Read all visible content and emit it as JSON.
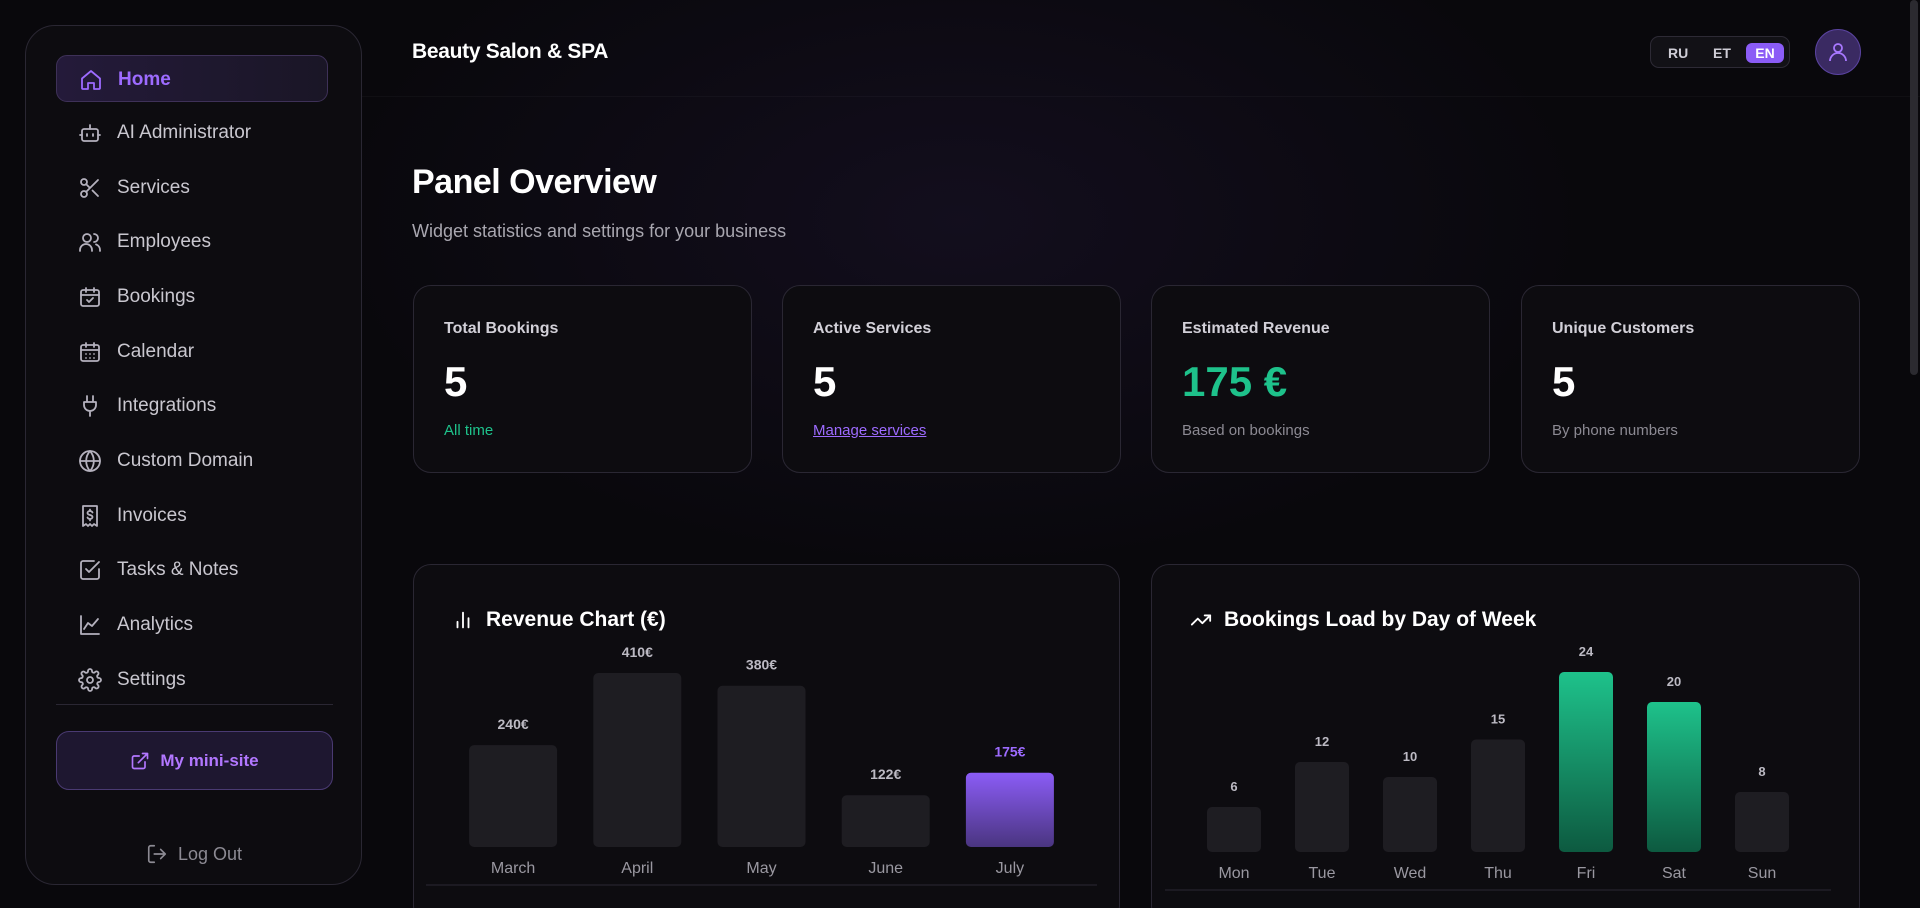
{
  "sidebar": {
    "items": [
      {
        "label": "Home",
        "icon": "home-icon",
        "active": true
      },
      {
        "label": "AI Administrator",
        "icon": "bot-icon"
      },
      {
        "label": "Services",
        "icon": "scissors-icon"
      },
      {
        "label": "Employees",
        "icon": "users-icon"
      },
      {
        "label": "Bookings",
        "icon": "calendar-check-icon"
      },
      {
        "label": "Calendar",
        "icon": "calendar-icon"
      },
      {
        "label": "Integrations",
        "icon": "plug-icon"
      },
      {
        "label": "Custom Domain",
        "icon": "globe-icon"
      },
      {
        "label": "Invoices",
        "icon": "receipt-icon"
      },
      {
        "label": "Tasks & Notes",
        "icon": "checkbox-icon"
      },
      {
        "label": "Analytics",
        "icon": "line-chart-icon"
      },
      {
        "label": "Settings",
        "icon": "gear-icon"
      }
    ],
    "mini_site_label": "My mini-site",
    "logout_label": "Log Out"
  },
  "header": {
    "brand": "Beauty Salon & SPA",
    "languages": [
      "RU",
      "ET",
      "EN"
    ],
    "selected_language": "EN"
  },
  "page": {
    "title": "Panel Overview",
    "subtitle": "Widget statistics and settings for your business"
  },
  "stats": [
    {
      "title": "Total Bookings",
      "value": "5",
      "footer": "All time"
    },
    {
      "title": "Active Services",
      "value": "5",
      "footer": "Manage services"
    },
    {
      "title": "Estimated Revenue",
      "value": "175 €",
      "footer": "Based on bookings"
    },
    {
      "title": "Unique Customers",
      "value": "5",
      "footer": "By phone numbers"
    }
  ],
  "colors": {
    "accent": "#8b5cf6",
    "positive": "#1ec28b",
    "bar_default": "#1e1d22"
  },
  "chart_data": [
    {
      "type": "bar",
      "title": "Revenue Chart (€)",
      "categories": [
        "March",
        "April",
        "May",
        "June",
        "July"
      ],
      "values": [
        240,
        410,
        380,
        122,
        175
      ],
      "labels": [
        "240€",
        "410€",
        "380€",
        "122€",
        "175€"
      ],
      "highlight_index": 4,
      "highlight_color": "#8b5cf6"
    },
    {
      "type": "bar",
      "title": "Bookings Load by Day of Week",
      "categories": [
        "Mon",
        "Tue",
        "Wed",
        "Thu",
        "Fri",
        "Sat",
        "Sun"
      ],
      "values": [
        6,
        12,
        10,
        15,
        24,
        20,
        8
      ],
      "labels": [
        "6",
        "12",
        "10",
        "15",
        "24",
        "20",
        "8"
      ],
      "highlight_indices": [
        4,
        5
      ],
      "highlight_color": "#1ec28b"
    }
  ]
}
